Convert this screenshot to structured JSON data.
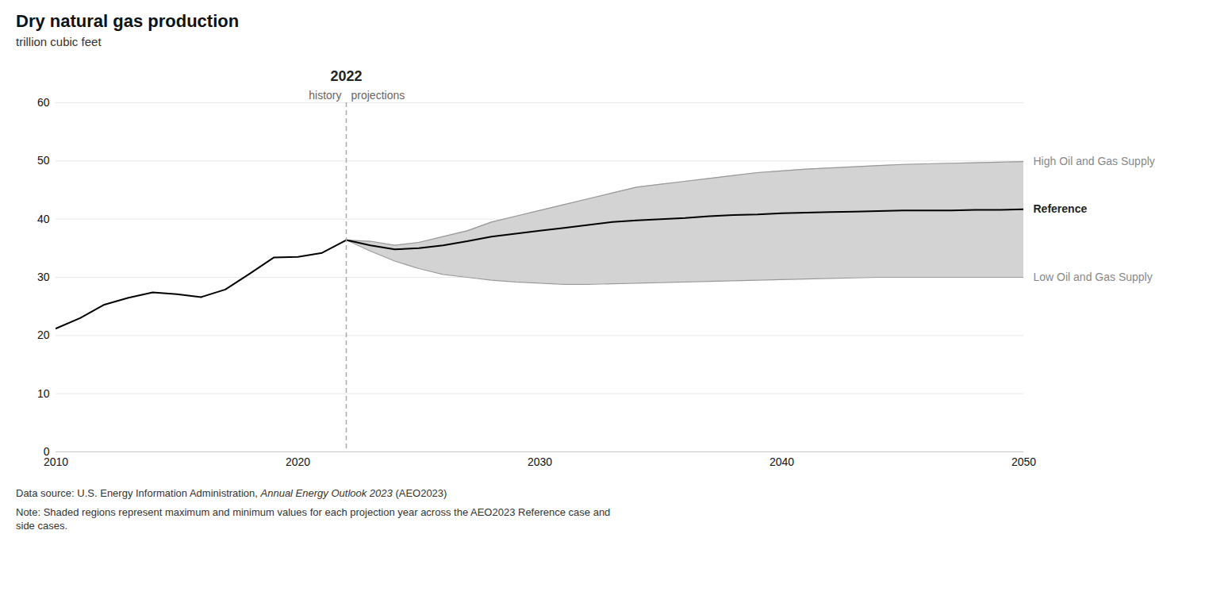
{
  "chart_data": {
    "type": "line",
    "title": "Dry natural gas production",
    "subtitle": "trillion cubic feet",
    "xlim": [
      2010,
      2050
    ],
    "ylim": [
      0,
      60
    ],
    "xticks": [
      2010,
      2020,
      2030,
      2040,
      2050
    ],
    "yticks": [
      0,
      10,
      20,
      30,
      40,
      50,
      60
    ],
    "grid": true,
    "series": [
      {
        "name": "High Oil and Gas Supply",
        "color": "#999999",
        "x": [
          2022,
          2023,
          2024,
          2025,
          2026,
          2027,
          2028,
          2029,
          2030,
          2031,
          2032,
          2033,
          2034,
          2035,
          2036,
          2037,
          2038,
          2039,
          2040,
          2041,
          2042,
          2043,
          2044,
          2045,
          2046,
          2047,
          2048,
          2049,
          2050
        ],
        "values": [
          36.4,
          36.2,
          35.5,
          36.0,
          37.0,
          38.0,
          39.5,
          40.5,
          41.5,
          42.5,
          43.5,
          44.5,
          45.5,
          46.0,
          46.5,
          47.0,
          47.5,
          48.0,
          48.3,
          48.6,
          48.8,
          49.0,
          49.2,
          49.4,
          49.5,
          49.6,
          49.7,
          49.8,
          49.9
        ]
      },
      {
        "name": "Low Oil and Gas Supply",
        "color": "#999999",
        "x": [
          2022,
          2023,
          2024,
          2025,
          2026,
          2027,
          2028,
          2029,
          2030,
          2031,
          2032,
          2033,
          2034,
          2035,
          2036,
          2037,
          2038,
          2039,
          2040,
          2041,
          2042,
          2043,
          2044,
          2045,
          2046,
          2047,
          2048,
          2049,
          2050
        ],
        "values": [
          36.4,
          34.5,
          32.8,
          31.5,
          30.5,
          30.0,
          29.5,
          29.2,
          29.0,
          28.8,
          28.8,
          28.9,
          29.0,
          29.1,
          29.2,
          29.3,
          29.4,
          29.5,
          29.6,
          29.7,
          29.8,
          29.9,
          30.0,
          30.0,
          30.0,
          30.0,
          30.0,
          30.0,
          30.0
        ]
      },
      {
        "name": "Reference",
        "color": "#000000",
        "x": [
          2022,
          2023,
          2024,
          2025,
          2026,
          2027,
          2028,
          2029,
          2030,
          2031,
          2032,
          2033,
          2034,
          2035,
          2036,
          2037,
          2038,
          2039,
          2040,
          2041,
          2042,
          2043,
          2044,
          2045,
          2046,
          2047,
          2048,
          2049,
          2050
        ],
        "values": [
          36.4,
          35.5,
          34.8,
          35.0,
          35.5,
          36.2,
          37.0,
          37.5,
          38.0,
          38.5,
          39.0,
          39.5,
          39.8,
          40.0,
          40.2,
          40.5,
          40.7,
          40.8,
          41.0,
          41.1,
          41.2,
          41.3,
          41.4,
          41.5,
          41.5,
          41.5,
          41.6,
          41.6,
          41.7
        ]
      },
      {
        "color": "#000000",
        "x": [
          2010,
          2011,
          2012,
          2013,
          2014,
          2015,
          2016,
          2017,
          2018,
          2019,
          2020,
          2021,
          2022
        ],
        "values": [
          21.2,
          23.0,
          25.3,
          26.5,
          27.4,
          27.1,
          26.6,
          27.9,
          30.6,
          33.4,
          33.5,
          34.2,
          36.4
        ]
      }
    ],
    "band": {
      "between": [
        "Low Oil and Gas Supply",
        "High Oil and Gas Supply"
      ],
      "color": "#d3d3d3"
    },
    "divider": {
      "x": 2022,
      "label": "2022",
      "color": "#aaaaaa",
      "line_style": "dashed"
    },
    "history_label": "history",
    "projections_label": "projections",
    "source": [
      {
        "text": "Data source: U.S. Energy Information Administration, "
      },
      {
        "text": "Annual Energy Outlook 2023",
        "italic": true
      },
      {
        "text": " (AEO2023)"
      }
    ],
    "note": "Note: Shaded regions represent maximum and minimum values for each projection year across the AEO2023 Reference case and\nside cases."
  }
}
